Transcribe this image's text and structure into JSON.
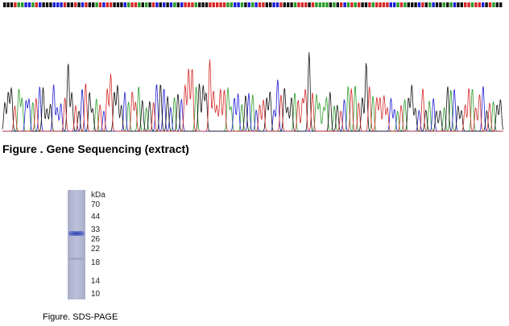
{
  "sequencing": {
    "caption": "Figure . Gene Sequencing (extract)"
  },
  "sds_page": {
    "unit": "kDa",
    "markers": [
      70,
      44,
      33,
      26,
      22,
      18,
      14,
      10
    ],
    "caption": "Figure. SDS-PAGE"
  }
}
